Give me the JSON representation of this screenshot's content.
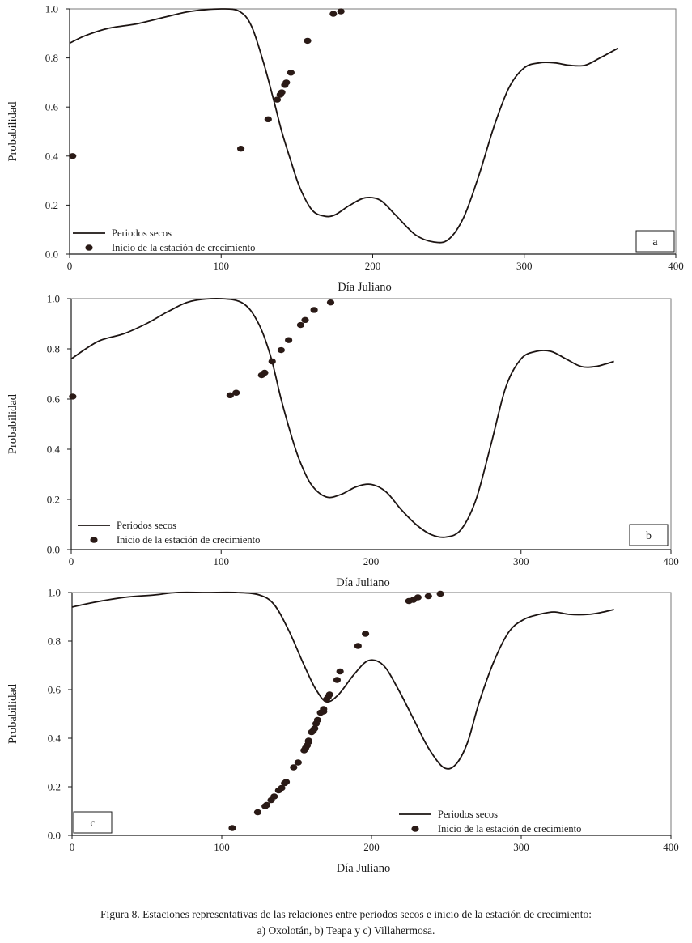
{
  "chart_data": [
    {
      "type": "line+scatter",
      "panel_label": "a",
      "xlabel": "Día Juliano",
      "ylabel": "Probabilidad",
      "xlim": [
        0,
        400
      ],
      "ylim": [
        0,
        1
      ],
      "xticks": [
        "0",
        "100",
        "200",
        "300",
        "400"
      ],
      "yticks": [
        "0.0",
        "0.2",
        "0.4",
        "0.6",
        "0.8",
        "1.0"
      ],
      "legend_position": "bottom-left",
      "series": [
        {
          "name": "Periodos secos",
          "kind": "line",
          "x": [
            0,
            10,
            25,
            45,
            65,
            80,
            100,
            112,
            120,
            128,
            135,
            140,
            146,
            152,
            160,
            168,
            175,
            185,
            195,
            205,
            215,
            228,
            240,
            250,
            260,
            270,
            280,
            290,
            300,
            310,
            320,
            330,
            340,
            350,
            362
          ],
          "y": [
            0.86,
            0.89,
            0.92,
            0.94,
            0.97,
            0.99,
            1.0,
            0.99,
            0.93,
            0.78,
            0.62,
            0.5,
            0.38,
            0.27,
            0.18,
            0.155,
            0.16,
            0.2,
            0.23,
            0.22,
            0.16,
            0.08,
            0.05,
            0.06,
            0.15,
            0.32,
            0.52,
            0.68,
            0.76,
            0.78,
            0.78,
            0.77,
            0.77,
            0.8,
            0.84
          ]
        },
        {
          "name": "Inicio de la estación de crecimiento",
          "kind": "scatter",
          "x": [
            2,
            113,
            131,
            137,
            139,
            140,
            142,
            143,
            146,
            157,
            174,
            179
          ],
          "y": [
            0.4,
            0.43,
            0.55,
            0.63,
            0.65,
            0.66,
            0.69,
            0.7,
            0.74,
            0.87,
            0.98,
            0.99
          ]
        }
      ]
    },
    {
      "type": "line+scatter",
      "panel_label": "b",
      "xlabel": "Día Juliano",
      "ylabel": "Probabilidad",
      "xlim": [
        0,
        400
      ],
      "ylim": [
        0,
        1
      ],
      "xticks": [
        "0",
        "100",
        "200",
        "300",
        "400"
      ],
      "yticks": [
        "0.0",
        "0.2",
        "0.4",
        "0.6",
        "0.8",
        "1.0"
      ],
      "legend_position": "bottom-left",
      "series": [
        {
          "name": "Periodos secos",
          "kind": "line",
          "x": [
            0,
            18,
            35,
            50,
            65,
            80,
            100,
            115,
            125,
            133,
            140,
            146,
            152,
            160,
            170,
            180,
            190,
            200,
            210,
            220,
            230,
            240,
            250,
            260,
            270,
            280,
            290,
            300,
            310,
            320,
            330,
            340,
            350,
            362
          ],
          "y": [
            0.76,
            0.83,
            0.86,
            0.9,
            0.95,
            0.99,
            1.0,
            0.98,
            0.9,
            0.77,
            0.6,
            0.47,
            0.36,
            0.26,
            0.21,
            0.22,
            0.25,
            0.26,
            0.23,
            0.16,
            0.1,
            0.06,
            0.05,
            0.08,
            0.2,
            0.42,
            0.65,
            0.76,
            0.79,
            0.79,
            0.76,
            0.73,
            0.73,
            0.75
          ]
        },
        {
          "name": "Inicio de la estación de crecimiento",
          "kind": "scatter",
          "x": [
            1,
            106,
            110,
            127,
            129,
            134,
            140,
            145,
            153,
            156,
            162,
            173
          ],
          "y": [
            0.61,
            0.615,
            0.625,
            0.695,
            0.705,
            0.75,
            0.795,
            0.835,
            0.895,
            0.915,
            0.955,
            0.985
          ]
        }
      ]
    },
    {
      "type": "line+scatter",
      "panel_label": "c",
      "xlabel": "Día Juliano",
      "ylabel": "Probabilidad",
      "xlim": [
        0,
        400
      ],
      "ylim": [
        0,
        1
      ],
      "xticks": [
        "0",
        "100",
        "200",
        "300",
        "400"
      ],
      "yticks": [
        "0.0",
        "0.2",
        "0.4",
        "0.6",
        "0.8",
        "1.0"
      ],
      "legend_position": "bottom-right",
      "series": [
        {
          "name": "Periodos secos",
          "kind": "line",
          "x": [
            0,
            15,
            35,
            55,
            70,
            90,
            110,
            125,
            135,
            145,
            155,
            163,
            170,
            178,
            188,
            198,
            208,
            218,
            228,
            238,
            248,
            256,
            264,
            272,
            282,
            292,
            302,
            312,
            322,
            332,
            345,
            355,
            362
          ],
          "y": [
            0.94,
            0.96,
            0.98,
            0.99,
            1.0,
            1.0,
            1.0,
            0.99,
            0.95,
            0.84,
            0.7,
            0.6,
            0.55,
            0.58,
            0.66,
            0.72,
            0.7,
            0.6,
            0.48,
            0.36,
            0.28,
            0.29,
            0.38,
            0.55,
            0.72,
            0.84,
            0.89,
            0.91,
            0.92,
            0.91,
            0.91,
            0.92,
            0.93
          ]
        },
        {
          "name": "Inicio de la estación de crecimiento",
          "kind": "scatter",
          "x": [
            107,
            124,
            129,
            130,
            133,
            135,
            138,
            140,
            142,
            143,
            148,
            151,
            155,
            156,
            157,
            158,
            158,
            160,
            161,
            162,
            163,
            164,
            166,
            168,
            168,
            170,
            171,
            172,
            177,
            179,
            191,
            196,
            225,
            228,
            231,
            238,
            246
          ],
          "y": [
            0.03,
            0.095,
            0.12,
            0.125,
            0.145,
            0.16,
            0.185,
            0.195,
            0.215,
            0.22,
            0.28,
            0.3,
            0.35,
            0.36,
            0.37,
            0.385,
            0.39,
            0.425,
            0.43,
            0.44,
            0.46,
            0.475,
            0.505,
            0.51,
            0.52,
            0.56,
            0.57,
            0.58,
            0.64,
            0.675,
            0.78,
            0.83,
            0.965,
            0.97,
            0.98,
            0.985,
            0.995
          ]
        }
      ]
    }
  ],
  "caption": {
    "line1": "Figura 8. Estaciones representativas de las relaciones entre periodos secos e inicio de la estación de crecimiento:",
    "line2": "a) Oxolotán, b) Teapa y c) Villahermosa."
  }
}
